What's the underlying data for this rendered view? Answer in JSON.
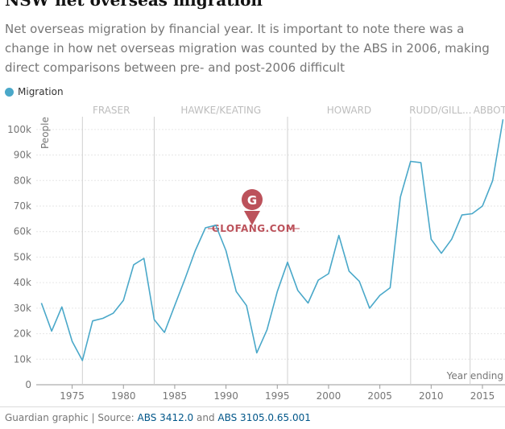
{
  "header": {
    "title": "NSW net overseas migration",
    "subtitle": "Net overseas migration by financial year. It is important to note there was a change in how net overseas migration was counted by the ABS in 2006, making direct comparisons between pre- and post-2006 difficult"
  },
  "legend": {
    "label": "Migration"
  },
  "watermark": {
    "text": "GLOFANG.COM",
    "color": "#b5404a"
  },
  "footer": {
    "prefix": "Guardian graphic | Source: ",
    "link1": "ABS 3412.0",
    "middle": " and ",
    "link2": "ABS 3105.0.65.001"
  },
  "chart_data": {
    "type": "line",
    "ylabel": "People",
    "xlabel": "Year ending",
    "color": "#4aa8c9",
    "xlim": [
      1971.5,
      2017.2
    ],
    "ylim": [
      0,
      105000
    ],
    "yticks": [
      0,
      10000,
      20000,
      30000,
      40000,
      50000,
      60000,
      70000,
      80000,
      90000,
      100000
    ],
    "ytick_labels": [
      "0",
      "10k",
      "20k",
      "30k",
      "40k",
      "50k",
      "60k",
      "70k",
      "80k",
      "90k",
      "100k"
    ],
    "xticks": [
      1975,
      1980,
      1985,
      1990,
      1995,
      2000,
      2005,
      2010,
      2015
    ],
    "xtick_labels": [
      "1975",
      "1980",
      "1985",
      "1990",
      "1995",
      "2000",
      "2005",
      "2010",
      "2015"
    ],
    "eras": [
      {
        "label": "FRASER",
        "start": 1976
      },
      {
        "label": "HAWKE/KEATING",
        "start": 1983
      },
      {
        "label": "HOWARD",
        "start": 1996
      },
      {
        "label": "RUDD/GILL...",
        "start": 2008
      },
      {
        "label": "ABBOT",
        "start": 2013.8
      }
    ],
    "series": [
      {
        "name": "Migration",
        "x": [
          1972,
          1973,
          1974,
          1975,
          1976,
          1977,
          1978,
          1979,
          1980,
          1981,
          1982,
          1983,
          1984,
          1985,
          1986,
          1987,
          1988,
          1989,
          1990,
          1991,
          1992,
          1993,
          1994,
          1995,
          1996,
          1997,
          1998,
          1999,
          2000,
          2001,
          2002,
          2003,
          2004,
          2005,
          2006,
          2007,
          2008,
          2009,
          2010,
          2011,
          2012,
          2013,
          2014,
          2015,
          2016,
          2017
        ],
        "values": [
          32000,
          21000,
          30500,
          17000,
          9500,
          25000,
          26000,
          28000,
          33000,
          47000,
          49500,
          25500,
          20500,
          31000,
          41500,
          52500,
          61500,
          62500,
          52500,
          36500,
          31000,
          12500,
          21500,
          36500,
          48000,
          37000,
          32000,
          41000,
          43500,
          58500,
          44500,
          40500,
          30000,
          35000,
          38000,
          73500,
          87500,
          87000,
          57000,
          51500,
          57000,
          66500,
          67000,
          70000,
          80000,
          104000
        ]
      }
    ]
  }
}
